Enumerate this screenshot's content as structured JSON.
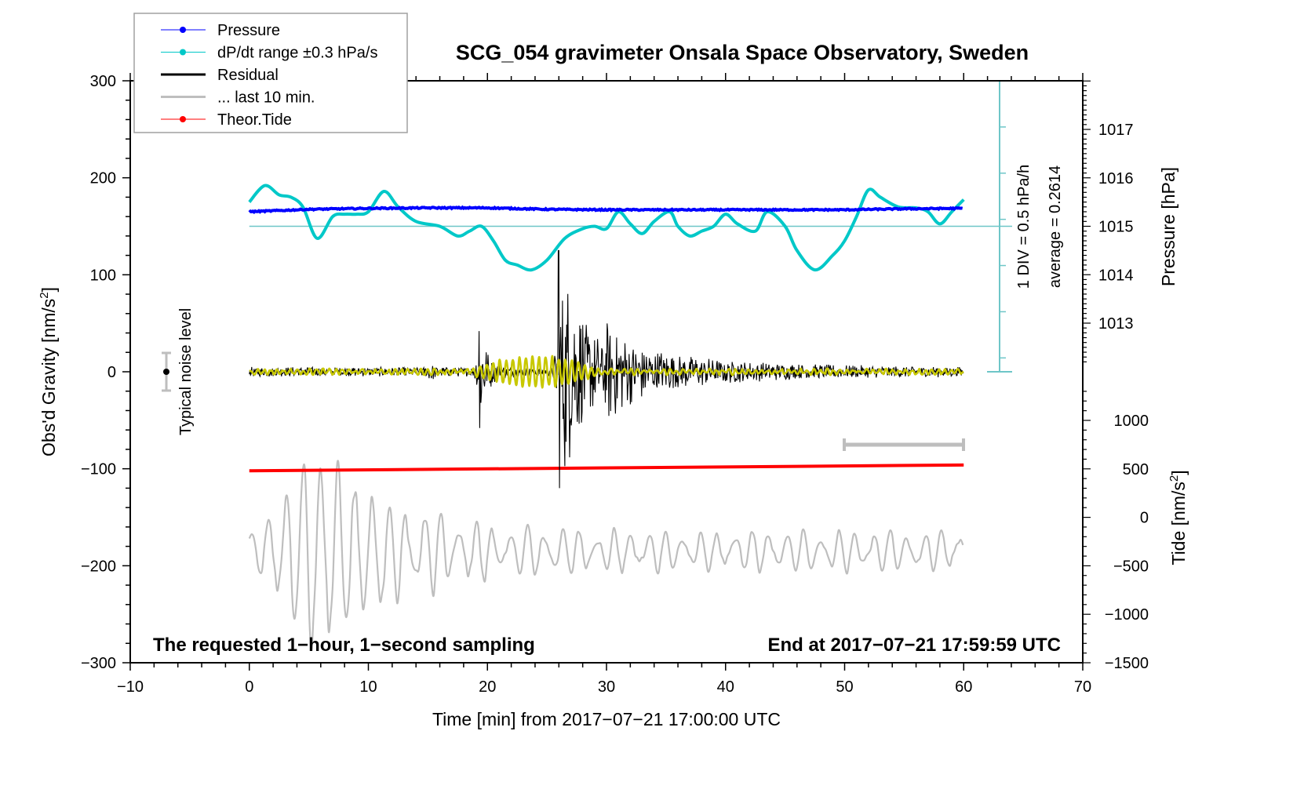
{
  "chart_data": {
    "type": "line",
    "title": "SCG_054 gravimeter Onsala Space Observatory, Sweden",
    "xlabel": "Time [min] from 2017−07−21 17:00:00 UTC",
    "ylabel_left": "Obs'd Gravity [nm/s",
    "ylabel_left_sup": "2",
    "ylabel_left_end": "]",
    "ylabel_right_pressure": "Pressure [hPa]",
    "ylabel_right_tide": "Tide [nm/s",
    "ylabel_right_tide_sup": "2",
    "ylabel_right_tide_end": "]",
    "xlim": [
      -10,
      70
    ],
    "ylim_left": [
      -300,
      300
    ],
    "pressure_axis_range_hpa": [
      1012,
      1018
    ],
    "tide_axis_range": [
      -1500,
      1000
    ],
    "x_ticks": [
      -10,
      0,
      10,
      20,
      30,
      40,
      50,
      60,
      70
    ],
    "x_tick_labels": [
      "−10",
      "0",
      "10",
      "20",
      "30",
      "40",
      "50",
      "60",
      "70"
    ],
    "y_left_ticks": [
      300,
      200,
      100,
      0,
      -100,
      -200,
      -300
    ],
    "y_left_tick_labels": [
      "300",
      "200",
      "100",
      "0",
      "−100",
      "−200",
      "−300"
    ],
    "pressure_ticks": [
      1017,
      1016,
      1015,
      1014,
      1013
    ],
    "pressure_tick_labels": [
      "1017",
      "1016",
      "1015",
      "1014",
      "1013"
    ],
    "tide_ticks": [
      1000,
      500,
      0,
      -500,
      -1000,
      -1500
    ],
    "tide_tick_labels": [
      "1000",
      "500",
      "0",
      "−500",
      "−1000",
      "−1500"
    ],
    "legend": {
      "position": "top-left",
      "entries": [
        {
          "label": "Pressure",
          "color": "#0000ff",
          "marker": "dot"
        },
        {
          "label": "dP/dt range ±0.3 hPa/s",
          "color": "#00c8c8",
          "marker": "dot"
        },
        {
          "label": "Residual",
          "color": "#000000",
          "marker": "line"
        },
        {
          "label": "... last 10 min.",
          "color": "#bebebe",
          "marker": "line"
        },
        {
          "label": "Theor.Tide",
          "color": "#ff0000",
          "marker": "dot"
        }
      ]
    },
    "annotations": {
      "bottom_left": "The requested 1−hour, 1−second sampling",
      "bottom_right": "End at 2017−07−21 17:59:59 UTC",
      "dpdt_scale": "1 DIV = 0.5 hPa/h",
      "dpdt_average": "average = 0.2614",
      "noise_label": "Typical noise level",
      "noise_level_nms2": [
        -20,
        20
      ],
      "last_10min_window_min": [
        50,
        60
      ]
    },
    "series": [
      {
        "name": "Pressure",
        "color": "#0000ff",
        "axis": "pressure_hpa",
        "x": [
          0,
          5,
          10,
          15,
          20,
          25,
          30,
          35,
          40,
          45,
          50,
          55,
          60
        ],
        "values": [
          1015.3,
          1015.35,
          1015.37,
          1015.38,
          1015.38,
          1015.35,
          1015.34,
          1015.34,
          1015.34,
          1015.34,
          1015.34,
          1015.36,
          1015.37
        ]
      },
      {
        "name": "dP/dt",
        "color": "#00c8c8",
        "axis": "pressure_hpa",
        "x": [
          0,
          1.3,
          2.5,
          3.5,
          4.5,
          5.7,
          7,
          8,
          9,
          10,
          11.3,
          12.5,
          14,
          16,
          17.5,
          18.5,
          19.5,
          20.5,
          21.5,
          22.5,
          23.7,
          25,
          26.5,
          28,
          29,
          30,
          31,
          32,
          33,
          34,
          35.3,
          36,
          37,
          38,
          39,
          40,
          41,
          42.5,
          43.5,
          45,
          46,
          47.5,
          49,
          50,
          51,
          52,
          53,
          54.5,
          56,
          57,
          58,
          59,
          60
        ],
        "values": [
          1015.5,
          1015.84,
          1015.65,
          1015.6,
          1015.4,
          1014.75,
          1015.2,
          1015.25,
          1015.25,
          1015.3,
          1015.72,
          1015.4,
          1015.1,
          1015.0,
          1014.8,
          1014.9,
          1015.0,
          1014.7,
          1014.3,
          1014.2,
          1014.1,
          1014.3,
          1014.75,
          1014.95,
          1015.0,
          1014.95,
          1015.3,
          1015.05,
          1014.85,
          1015.1,
          1015.3,
          1015.0,
          1014.8,
          1014.9,
          1015.0,
          1015.25,
          1015.05,
          1014.9,
          1015.3,
          1015.0,
          1014.5,
          1014.1,
          1014.4,
          1014.7,
          1015.2,
          1015.75,
          1015.6,
          1015.4,
          1015.38,
          1015.3,
          1015.05,
          1015.3,
          1015.55
        ]
      },
      {
        "name": "Residual",
        "color": "#000000",
        "axis": "gravity_nms2",
        "x_range": [
          0,
          60
        ],
        "envelope": {
          "baseline_amplitude": 5,
          "events": [
            {
              "t": 15.2,
              "peak": 15,
              "decay_min": 0.2
            },
            {
              "t": 19.3,
              "peak": 60,
              "decay_min": 0.6
            },
            {
              "t": 26.0,
              "peak": 125,
              "decay_min": 2.5
            },
            {
              "t": 30.0,
              "peak": 25,
              "decay_min": 8
            }
          ],
          "max": 125,
          "min": -120
        }
      },
      {
        "name": "Residual (filtered)",
        "color": "#c8c800",
        "axis": "gravity_nms2",
        "x_range": [
          0,
          60
        ],
        "envelope": {
          "max": 20,
          "min": -20,
          "active_window_min": [
            19,
            30
          ]
        }
      },
      {
        "name": "... last 10 min.",
        "color": "#bebebe",
        "axis": "gravity_nms2",
        "x_range": [
          0,
          60
        ],
        "baseline": -185,
        "peak_amplitude": 125,
        "peak_time_min": 5.5
      },
      {
        "name": "Theor.Tide",
        "color": "#ff0000",
        "axis": "tide_nms2",
        "x": [
          0,
          60
        ],
        "values": [
          480,
          540
        ]
      }
    ]
  }
}
